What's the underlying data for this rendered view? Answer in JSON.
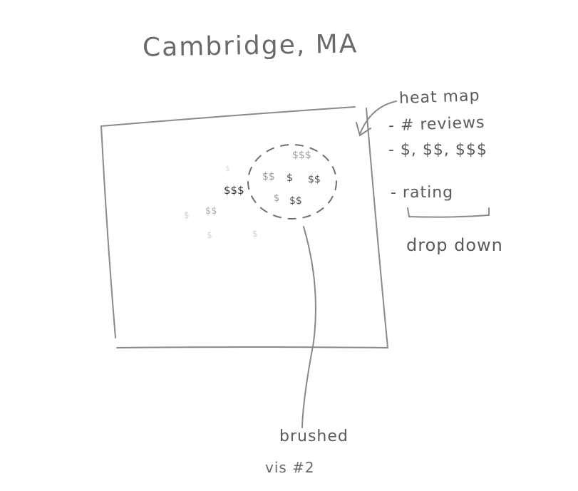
{
  "title": "Cambridge, MA",
  "side_panel": {
    "heading": "heat map",
    "options": [
      "- # reviews",
      "- $, $$, $$$",
      "- rating"
    ],
    "dropdown_label": "drop down"
  },
  "annotations": {
    "brushed": "brushed",
    "caption": "vis #2"
  },
  "colors": {
    "pencil": "#6a6a6a",
    "pencil_light": "#b0b0b0",
    "background": "#ffffff"
  },
  "marks": {
    "inside_brush": [
      "$$$",
      "$$",
      "$",
      "$$",
      "$",
      "$$"
    ],
    "outside_brush": [
      "$$$",
      "$$",
      "$",
      "$",
      "$",
      "$"
    ]
  }
}
